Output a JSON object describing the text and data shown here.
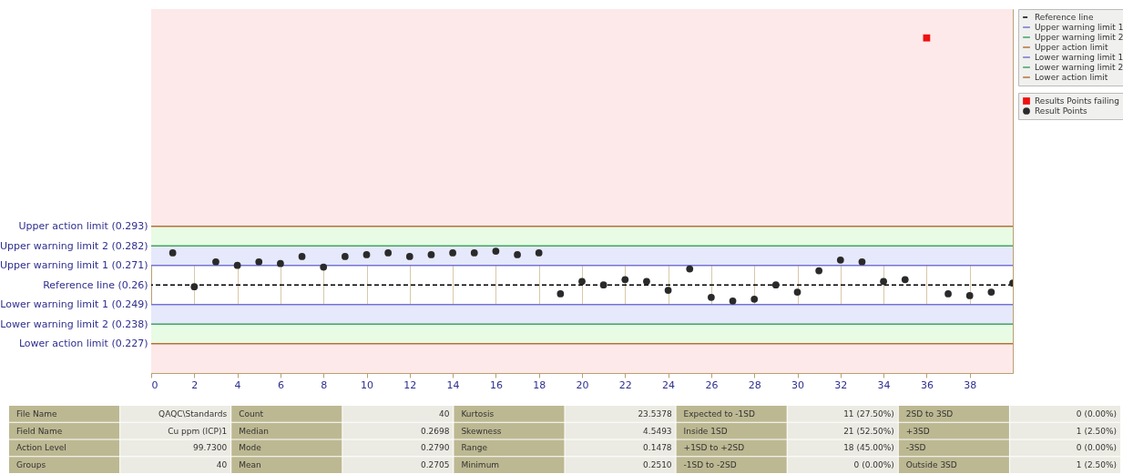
{
  "chart_data": [
    {
      "type": "scatter",
      "xlim": [
        0,
        40
      ],
      "ylim": [
        0.2105,
        0.415
      ],
      "xticks": [
        0,
        2,
        4,
        6,
        8,
        10,
        12,
        14,
        16,
        18,
        20,
        22,
        24,
        26,
        28,
        30,
        32,
        34,
        36,
        38
      ],
      "yticks": [
        {
          "value": 0.293,
          "label": "Upper action limit (0.293)"
        },
        {
          "value": 0.282,
          "label": "Upper warning limit 2 (0.282)"
        },
        {
          "value": 0.271,
          "label": "Upper warning limit 1 (0.271)"
        },
        {
          "value": 0.26,
          "label": "Reference line (0.26)"
        },
        {
          "value": 0.249,
          "label": "Lower warning limit 1 (0.249)"
        },
        {
          "value": 0.238,
          "label": "Lower warning limit 2 (0.238)"
        },
        {
          "value": 0.227,
          "label": "Lower action limit (0.227)"
        }
      ],
      "grid": "x",
      "legend": "top right",
      "ref_lines": [
        {
          "axis": "y",
          "value": 0.26,
          "label": "Reference line",
          "color": "#000000",
          "line_style": "dashed"
        },
        {
          "axis": "y",
          "value": 0.271,
          "label": "Upper warning limit 1",
          "color": "#7474d6",
          "line_style": "solid"
        },
        {
          "axis": "y",
          "value": 0.282,
          "label": "Upper warning limit 2",
          "color": "#3fa564",
          "line_style": "solid"
        },
        {
          "axis": "y",
          "value": 0.293,
          "label": "Upper action limit",
          "color": "#b87038",
          "line_style": "solid"
        },
        {
          "axis": "y",
          "value": 0.249,
          "label": "Lower warning limit 1",
          "color": "#7474d6",
          "line_style": "solid"
        },
        {
          "axis": "y",
          "value": 0.238,
          "label": "Lower warning limit 2",
          "color": "#3fa564",
          "line_style": "solid"
        },
        {
          "axis": "y",
          "value": 0.227,
          "label": "Lower action limit",
          "color": "#b87038",
          "line_style": "solid"
        }
      ],
      "bands": [
        {
          "axis": "y",
          "from": 0.293,
          "to": 0.415,
          "color": "#fde9e9"
        },
        {
          "axis": "y",
          "from": 0.282,
          "to": 0.293,
          "color": "#e8fbe5"
        },
        {
          "axis": "y",
          "from": 0.271,
          "to": 0.282,
          "color": "#e6e8fb"
        },
        {
          "axis": "y",
          "from": 0.238,
          "to": 0.249,
          "color": "#e6e8fb"
        },
        {
          "axis": "y",
          "from": 0.227,
          "to": 0.238,
          "color": "#e8fbe5"
        },
        {
          "axis": "y",
          "from": 0.2105,
          "to": 0.227,
          "color": "#fde9e9"
        }
      ],
      "series": [
        {
          "name": "Results Points failing",
          "color": "#ee1111",
          "marker": "square",
          "x": [
            36
          ],
          "values": [
            0.3988
          ]
        },
        {
          "name": "Result Points",
          "color": "#2a2a2a",
          "marker": "circle",
          "x": [
            1,
            2,
            3,
            4,
            5,
            6,
            7,
            8,
            9,
            10,
            11,
            12,
            13,
            14,
            15,
            16,
            17,
            18,
            19,
            20,
            21,
            22,
            23,
            24,
            25,
            26,
            27,
            28,
            29,
            30,
            31,
            32,
            33,
            34,
            35,
            37,
            38,
            39,
            40
          ],
          "values": [
            0.278,
            0.259,
            0.273,
            0.271,
            0.273,
            0.272,
            0.276,
            0.27,
            0.276,
            0.277,
            0.278,
            0.276,
            0.277,
            0.278,
            0.278,
            0.279,
            0.277,
            0.278,
            0.255,
            0.262,
            0.26,
            0.263,
            0.262,
            0.257,
            0.269,
            0.253,
            0.251,
            0.252,
            0.26,
            0.256,
            0.268,
            0.274,
            0.273,
            0.262,
            0.263,
            0.255,
            0.254,
            0.256,
            0.261
          ]
        }
      ]
    },
    {
      "type": "other",
      "annotations": [
        "File Name",
        "QAQC\\Standards",
        "Count",
        "40",
        "Kurtosis",
        "23.5378",
        "Expected to -1SD",
        "11 (27.50%)",
        "2SD to 3SD",
        "0 (0.00%)",
        "Field Name",
        "Cu ppm (ICP)1",
        "Median",
        "0.2698",
        "Skewness",
        "4.5493",
        "Inside 1SD",
        "21 (52.50%)",
        "+3SD",
        "1 (2.50%)",
        "Action Level",
        "99.7300",
        "Mode",
        "0.2790",
        "Range",
        "0.1478",
        "+1SD to +2SD",
        "18 (45.00%)",
        "-3SD",
        "0 (0.00%)",
        "Groups",
        "40",
        "Mean",
        "0.2705",
        "Minimum",
        "0.2510",
        "-1SD to -2SD",
        "0 (0.00%)",
        "Outside 3SD",
        "1 (2.50%)"
      ]
    }
  ]
}
